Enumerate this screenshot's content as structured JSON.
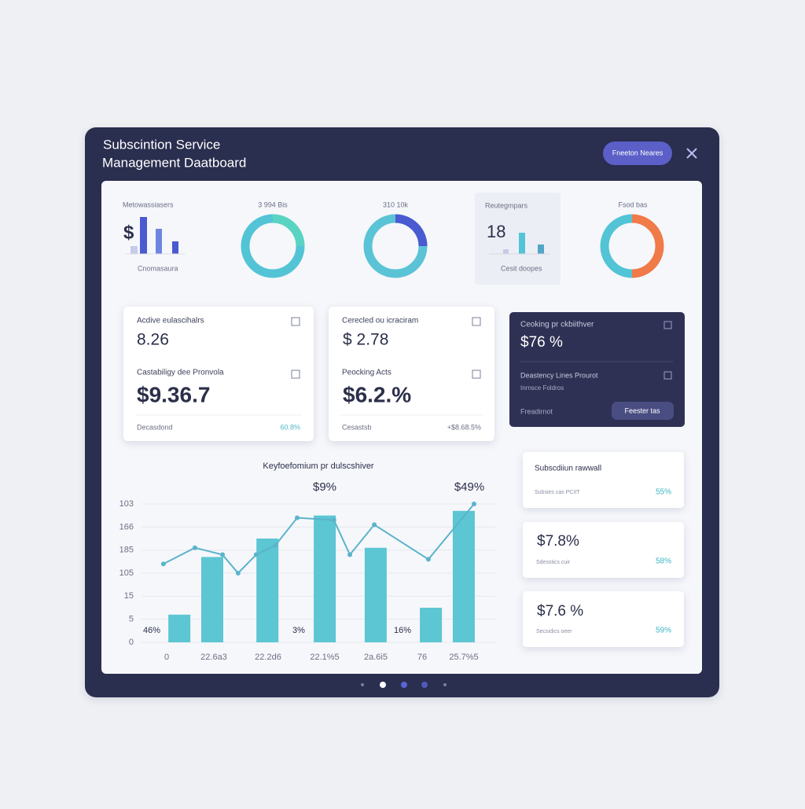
{
  "header": {
    "title_line1": "Subscintion Service",
    "title_line2": "Management Daatboard",
    "button": "Fneeton Neares"
  },
  "summary": {
    "widget1": {
      "label": "Metowassiasers",
      "symbol": "$",
      "caption": "Cnomasaura"
    },
    "donut1": {
      "label": "3 994 Bis"
    },
    "donut2": {
      "label": "310 10k"
    },
    "widget4": {
      "label": "Reutegmpars",
      "value": "18",
      "caption": "Cesit doopes"
    },
    "donut3": {
      "label": "Fsod bas"
    }
  },
  "cards": [
    {
      "label1": "Acdive eulascihalrs",
      "value1": "8.26",
      "label2": "Castabiligy dee Pronvola",
      "value2": "$9.36.7",
      "footer_left": "Decasdond",
      "footer_right": "60.8%"
    },
    {
      "label1": "Cerecled ou icraciram",
      "value1": "$ 2.78",
      "label2": "Peocking Acts",
      "value2": "$6.2.%",
      "footer_left": "Cesastsb",
      "footer_right": "+$8.68.5%"
    },
    {
      "label1": "Ceoking pr ckbiithver",
      "value1": "$76 %",
      "label2": "Deastency Lines Prourot",
      "sub2": "Inrnsce Foldros",
      "footer_left": "Freadirnot",
      "button": "Feester tas"
    }
  ],
  "side_cards": [
    {
      "title": "Subscdiiun rawwall",
      "caption": "Subsies cas PCIIT",
      "percent": "55%"
    },
    {
      "value": "$7.8%",
      "caption": "Sdesstics cuir",
      "percent": "58%"
    },
    {
      "value": "$7.6 %",
      "caption": "Secsidics oeer",
      "percent": "59%"
    }
  ],
  "chart": {
    "title": "Keyfoefomium pr dulscshiver",
    "ylim": [
      0,
      6.5
    ],
    "xlim": [
      0,
      100
    ],
    "yticks": [
      {
        "value": 0,
        "label": "0"
      },
      {
        "value": 1,
        "label": "5"
      },
      {
        "value": 2,
        "label": "15"
      },
      {
        "value": 3,
        "label": "105"
      },
      {
        "value": 4,
        "label": "185"
      },
      {
        "value": 5,
        "label": "166"
      },
      {
        "value": 6,
        "label": "103"
      }
    ],
    "x_labels": [
      "0",
      "22.6a3",
      "22.2d6",
      "22.1%5",
      "2a.6i5",
      "76",
      "25.7%5"
    ],
    "bars": {
      "color": "#5cc6d3",
      "x": [
        10.7,
        20,
        35.6,
        51.8,
        66.2,
        81.8,
        91.1
      ],
      "values": [
        1.2,
        3.7,
        4.5,
        5.5,
        4.1,
        1.5,
        5.7
      ]
    },
    "line": {
      "color": "#5ab4cb",
      "x": [
        6.2,
        15.1,
        22.9,
        27.3,
        32.4,
        37.8,
        44,
        54.4,
        58.9,
        65.8,
        81.1,
        94
      ],
      "values": [
        3.4,
        4.1,
        3.8,
        3.0,
        3.8,
        4.2,
        5.4,
        5.3,
        3.8,
        5.1,
        3.6,
        6.0
      ]
    },
    "annotations": [
      "$9%",
      "$49%",
      "46%",
      "3%",
      "16%"
    ]
  }
}
